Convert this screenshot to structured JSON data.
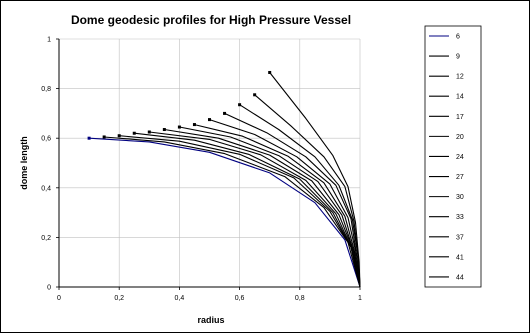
{
  "chart_data": {
    "type": "line",
    "title": "Dome geodesic profiles for High Pressure Vessel",
    "xlabel": "radius",
    "ylabel": "dome length",
    "xlim": [
      0,
      1
    ],
    "ylim": [
      0,
      1
    ],
    "x_ticks": [
      "0",
      "0,2",
      "0,4",
      "0,6",
      "0,8",
      "1"
    ],
    "y_ticks": [
      "0",
      "0,2",
      "0,4",
      "0,6",
      "0,8",
      "1"
    ],
    "grid": "horizontal and vertical",
    "legend_position": "right",
    "line_color": "#000000",
    "first_series_color": "#000080",
    "legend_entries": [
      "6",
      "9",
      "12",
      "14",
      "17",
      "20",
      "24",
      "27",
      "30",
      "33",
      "37",
      "41",
      "44"
    ],
    "series": [
      {
        "name": "6",
        "start": [
          0.1,
          0.6
        ],
        "points": [
          [
            0.1,
            0.6
          ],
          [
            0.3,
            0.585
          ],
          [
            0.5,
            0.543
          ],
          [
            0.7,
            0.46
          ],
          [
            0.85,
            0.34
          ],
          [
            0.95,
            0.19
          ],
          [
            1.0,
            0.0
          ]
        ]
      },
      {
        "name": "9",
        "start": [
          0.15,
          0.605
        ],
        "points": [
          [
            0.15,
            0.605
          ],
          [
            0.35,
            0.585
          ],
          [
            0.55,
            0.538
          ],
          [
            0.75,
            0.445
          ],
          [
            0.88,
            0.32
          ],
          [
            0.96,
            0.18
          ],
          [
            1.0,
            0.0
          ]
        ]
      },
      {
        "name": "12",
        "start": [
          0.2,
          0.61
        ],
        "points": [
          [
            0.2,
            0.61
          ],
          [
            0.4,
            0.588
          ],
          [
            0.6,
            0.535
          ],
          [
            0.78,
            0.44
          ],
          [
            0.9,
            0.305
          ],
          [
            0.97,
            0.16
          ],
          [
            1.0,
            0.0
          ]
        ]
      },
      {
        "name": "14",
        "start": [
          0.25,
          0.62
        ],
        "points": [
          [
            0.25,
            0.62
          ],
          [
            0.45,
            0.592
          ],
          [
            0.63,
            0.535
          ],
          [
            0.8,
            0.435
          ],
          [
            0.91,
            0.3
          ],
          [
            0.97,
            0.16
          ],
          [
            1.0,
            0.0
          ]
        ]
      },
      {
        "name": "17",
        "start": [
          0.3,
          0.625
        ],
        "points": [
          [
            0.3,
            0.625
          ],
          [
            0.5,
            0.595
          ],
          [
            0.67,
            0.533
          ],
          [
            0.82,
            0.43
          ],
          [
            0.92,
            0.295
          ],
          [
            0.975,
            0.15
          ],
          [
            1.0,
            0.0
          ]
        ]
      },
      {
        "name": "20",
        "start": [
          0.35,
          0.635
        ],
        "points": [
          [
            0.35,
            0.635
          ],
          [
            0.53,
            0.6
          ],
          [
            0.7,
            0.532
          ],
          [
            0.84,
            0.428
          ],
          [
            0.93,
            0.292
          ],
          [
            0.98,
            0.14
          ],
          [
            1.0,
            0.0
          ]
        ]
      },
      {
        "name": "24",
        "start": [
          0.4,
          0.645
        ],
        "points": [
          [
            0.4,
            0.645
          ],
          [
            0.57,
            0.605
          ],
          [
            0.73,
            0.53
          ],
          [
            0.86,
            0.425
          ],
          [
            0.94,
            0.29
          ],
          [
            0.98,
            0.14
          ],
          [
            1.0,
            0.0
          ]
        ]
      },
      {
        "name": "27",
        "start": [
          0.45,
          0.655
        ],
        "points": [
          [
            0.45,
            0.655
          ],
          [
            0.61,
            0.608
          ],
          [
            0.76,
            0.528
          ],
          [
            0.88,
            0.42
          ],
          [
            0.95,
            0.285
          ],
          [
            0.985,
            0.13
          ],
          [
            1.0,
            0.0
          ]
        ]
      },
      {
        "name": "30",
        "start": [
          0.5,
          0.675
        ],
        "points": [
          [
            0.5,
            0.675
          ],
          [
            0.65,
            0.615
          ],
          [
            0.79,
            0.525
          ],
          [
            0.9,
            0.415
          ],
          [
            0.96,
            0.28
          ],
          [
            0.99,
            0.12
          ],
          [
            1.0,
            0.0
          ]
        ]
      },
      {
        "name": "33",
        "start": [
          0.55,
          0.7
        ],
        "points": [
          [
            0.55,
            0.7
          ],
          [
            0.69,
            0.622
          ],
          [
            0.82,
            0.525
          ],
          [
            0.92,
            0.41
          ],
          [
            0.97,
            0.275
          ],
          [
            0.99,
            0.12
          ],
          [
            1.0,
            0.0
          ]
        ]
      },
      {
        "name": "37",
        "start": [
          0.6,
          0.735
        ],
        "points": [
          [
            0.6,
            0.735
          ],
          [
            0.73,
            0.635
          ],
          [
            0.85,
            0.525
          ],
          [
            0.93,
            0.41
          ],
          [
            0.975,
            0.27
          ],
          [
            0.995,
            0.11
          ],
          [
            1.0,
            0.0
          ]
        ]
      },
      {
        "name": "41",
        "start": [
          0.65,
          0.775
        ],
        "points": [
          [
            0.65,
            0.775
          ],
          [
            0.77,
            0.65
          ],
          [
            0.88,
            0.525
          ],
          [
            0.95,
            0.405
          ],
          [
            0.98,
            0.265
          ],
          [
            0.995,
            0.11
          ],
          [
            1.0,
            0.0
          ]
        ]
      },
      {
        "name": "44",
        "start": [
          0.7,
          0.865
        ],
        "points": [
          [
            0.7,
            0.865
          ],
          [
            0.82,
            0.68
          ],
          [
            0.91,
            0.53
          ],
          [
            0.96,
            0.405
          ],
          [
            0.985,
            0.26
          ],
          [
            0.997,
            0.1
          ],
          [
            1.0,
            0.0
          ]
        ]
      }
    ]
  }
}
